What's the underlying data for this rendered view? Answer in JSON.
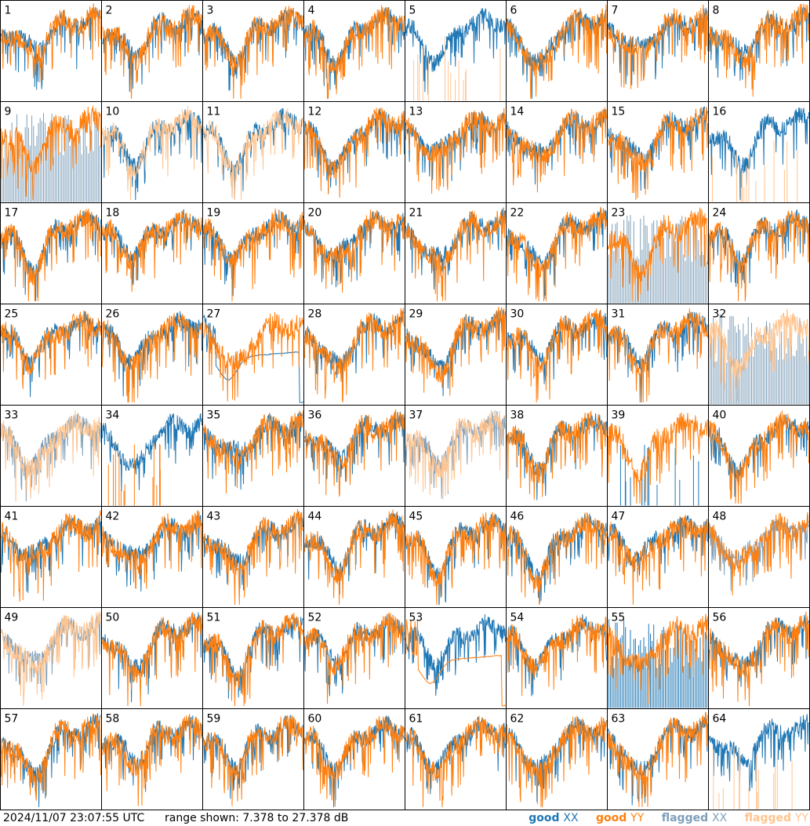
{
  "footer": {
    "timestamp": "2024/11/07 23:07:55 UTC",
    "range_text": "range shown: 7.378 to 27.378 dB"
  },
  "legend": [
    {
      "status": "good",
      "pol": "XX",
      "color": "#1f77b4"
    },
    {
      "status": "good",
      "pol": "YY",
      "color": "#ff7f0e"
    },
    {
      "status": "flagged",
      "pol": "XX",
      "color": "#7f9fba"
    },
    {
      "status": "flagged",
      "pol": "YY",
      "color": "#ffc48f"
    }
  ],
  "colors": {
    "good_xx": "#1f77b4",
    "good_yy": "#ff7f0e",
    "flagged_xx": "#7f9fba",
    "flagged_yy": "#ffc48f"
  },
  "chart_data": {
    "type": "line",
    "layout": "small-multiples grid 8x8",
    "y_unit": "dB",
    "ylim": [
      7.378,
      27.378
    ],
    "grid": false,
    "panels": [
      {
        "id": "1",
        "xx": "good",
        "yy": "good"
      },
      {
        "id": "2",
        "xx": "good",
        "yy": "good"
      },
      {
        "id": "3",
        "xx": "good",
        "yy": "good"
      },
      {
        "id": "4",
        "xx": "good",
        "yy": "good"
      },
      {
        "id": "5",
        "xx": "good",
        "yy": "flagged",
        "yy_shape": "spikes"
      },
      {
        "id": "6",
        "xx": "good",
        "yy": "good"
      },
      {
        "id": "7",
        "xx": "good",
        "yy": "good"
      },
      {
        "id": "8",
        "xx": "good",
        "yy": "good"
      },
      {
        "id": "9",
        "xx": "flagged",
        "yy": "good",
        "xx_shape": "dropouts"
      },
      {
        "id": "10",
        "xx": "good",
        "yy": "flagged"
      },
      {
        "id": "11",
        "xx": "good",
        "yy": "flagged"
      },
      {
        "id": "12",
        "xx": "good",
        "yy": "good"
      },
      {
        "id": "13",
        "xx": "good",
        "yy": "good"
      },
      {
        "id": "14",
        "xx": "good",
        "yy": "good"
      },
      {
        "id": "15",
        "xx": "good",
        "yy": "good"
      },
      {
        "id": "16",
        "xx": "good",
        "yy": "flagged",
        "yy_shape": "spikes"
      },
      {
        "id": "17",
        "xx": "good",
        "yy": "good"
      },
      {
        "id": "18",
        "xx": "good",
        "yy": "good"
      },
      {
        "id": "19",
        "xx": "good",
        "yy": "good"
      },
      {
        "id": "20",
        "xx": "good",
        "yy": "good"
      },
      {
        "id": "21",
        "xx": "good",
        "yy": "good"
      },
      {
        "id": "22",
        "xx": "good",
        "yy": "good"
      },
      {
        "id": "23",
        "xx": "flagged",
        "yy": "good",
        "xx_shape": "dropouts"
      },
      {
        "id": "24",
        "xx": "good",
        "yy": "good"
      },
      {
        "id": "25",
        "xx": "good",
        "yy": "good"
      },
      {
        "id": "26",
        "xx": "good",
        "yy": "good"
      },
      {
        "id": "27",
        "xx": "good",
        "yy": "good",
        "xx_shape": "smooth"
      },
      {
        "id": "28",
        "xx": "good",
        "yy": "good"
      },
      {
        "id": "29",
        "xx": "good",
        "yy": "good"
      },
      {
        "id": "30",
        "xx": "good",
        "yy": "good"
      },
      {
        "id": "31",
        "xx": "good",
        "yy": "good"
      },
      {
        "id": "32",
        "xx": "flagged",
        "yy": "flagged",
        "xx_shape": "dropouts"
      },
      {
        "id": "33",
        "xx": "flagged",
        "yy": "flagged"
      },
      {
        "id": "34",
        "xx": "good",
        "yy": "good",
        "yy_shape": "spikes"
      },
      {
        "id": "35",
        "xx": "good",
        "yy": "good"
      },
      {
        "id": "36",
        "xx": "good",
        "yy": "good"
      },
      {
        "id": "37",
        "xx": "flagged",
        "yy": "flagged"
      },
      {
        "id": "38",
        "xx": "good",
        "yy": "good"
      },
      {
        "id": "39",
        "xx": "good",
        "yy": "good",
        "xx_shape": "spikes"
      },
      {
        "id": "40",
        "xx": "good",
        "yy": "good"
      },
      {
        "id": "41",
        "xx": "good",
        "yy": "good"
      },
      {
        "id": "42",
        "xx": "good",
        "yy": "good"
      },
      {
        "id": "43",
        "xx": "good",
        "yy": "good"
      },
      {
        "id": "44",
        "xx": "good",
        "yy": "good"
      },
      {
        "id": "45",
        "xx": "good",
        "yy": "good"
      },
      {
        "id": "46",
        "xx": "good",
        "yy": "good"
      },
      {
        "id": "47",
        "xx": "good",
        "yy": "good"
      },
      {
        "id": "48",
        "xx": "flagged",
        "yy": "good"
      },
      {
        "id": "49",
        "xx": "flagged",
        "yy": "flagged"
      },
      {
        "id": "50",
        "xx": "good",
        "yy": "good"
      },
      {
        "id": "51",
        "xx": "good",
        "yy": "good"
      },
      {
        "id": "52",
        "xx": "good",
        "yy": "good"
      },
      {
        "id": "53",
        "xx": "good",
        "yy": "good",
        "yy_shape": "smooth"
      },
      {
        "id": "54",
        "xx": "good",
        "yy": "good"
      },
      {
        "id": "55",
        "xx": "good",
        "yy": "good",
        "xx_shape": "dropouts"
      },
      {
        "id": "56",
        "xx": "good",
        "yy": "good"
      },
      {
        "id": "57",
        "xx": "good",
        "yy": "good"
      },
      {
        "id": "58",
        "xx": "good",
        "yy": "good"
      },
      {
        "id": "59",
        "xx": "good",
        "yy": "good"
      },
      {
        "id": "60",
        "xx": "good",
        "yy": "good"
      },
      {
        "id": "61",
        "xx": "good",
        "yy": "good"
      },
      {
        "id": "62",
        "xx": "good",
        "yy": "good"
      },
      {
        "id": "63",
        "xx": "good",
        "yy": "good"
      },
      {
        "id": "64",
        "xx": "good",
        "yy": "flagged",
        "yy_shape": "spikes"
      }
    ]
  }
}
